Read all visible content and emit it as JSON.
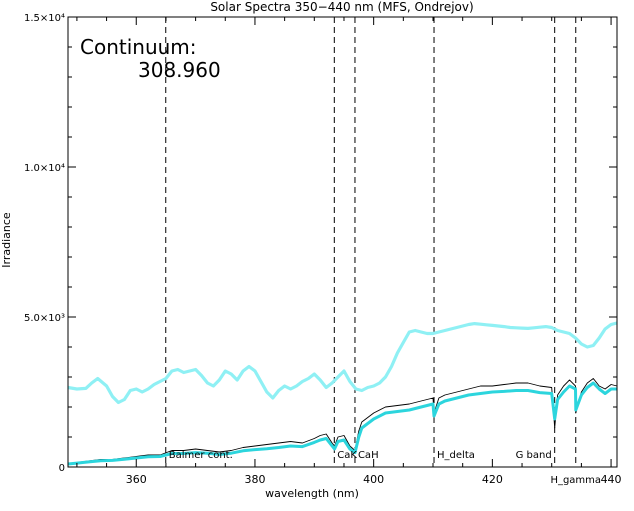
{
  "chart_data": {
    "type": "line",
    "title": "Solar Spectra 350−440 nm (MFS, Ondrejov)",
    "xlabel": "wavelength (nm)",
    "ylabel": "Irradiance",
    "xlim": [
      348.5,
      441
    ],
    "ylim": [
      0,
      15000
    ],
    "x_ticks": [
      {
        "value": 360,
        "label": "360"
      },
      {
        "value": 380,
        "label": "380"
      },
      {
        "value": 400,
        "label": "400"
      },
      {
        "value": 420,
        "label": "420"
      },
      {
        "value": 440,
        "label": "440"
      }
    ],
    "y_ticks": [
      {
        "value": 0,
        "label": "0"
      },
      {
        "value": 5000,
        "label": "5.0×10³"
      },
      {
        "value": 10000,
        "label": "1.0×10⁴"
      },
      {
        "value": 15000,
        "label": "1.5×10⁴"
      }
    ],
    "annotation": {
      "title": "Continuum:",
      "value": "308.960"
    },
    "colors": {
      "continuum": "#8ff0f4",
      "smoothed": "#2cd5dd",
      "raw": "#000000",
      "axes": "#000000"
    },
    "marker_lines": [
      {
        "x": 364.97,
        "label": "Balmer cont."
      },
      {
        "x": 393.37,
        "label": "CaK"
      },
      {
        "x": 396.85,
        "label": "CaH"
      },
      {
        "x": 410.17,
        "label": "H_delta"
      },
      {
        "x": 430.5,
        "label": "G band"
      },
      {
        "x": 434.05,
        "label": "H_gamma"
      }
    ],
    "series": [
      {
        "id": "continuum",
        "style": "thick",
        "x": [
          348.5,
          350,
          351.5,
          352.5,
          353.5,
          355,
          356,
          357,
          358,
          359,
          360,
          361,
          362,
          363,
          364,
          365,
          366,
          367,
          368,
          369,
          370,
          371,
          372,
          373,
          374,
          375,
          376,
          377,
          378,
          379,
          380,
          381,
          382,
          383,
          384,
          385,
          386,
          387,
          388,
          389,
          390,
          391,
          392,
          393,
          394,
          395,
          396,
          397,
          398,
          399,
          400,
          401,
          402,
          403,
          404,
          405,
          406,
          407,
          408,
          409,
          410,
          411,
          412,
          413,
          414,
          415,
          416,
          417,
          418,
          419,
          420,
          421,
          422,
          423,
          424,
          425,
          426,
          427,
          428,
          429,
          430,
          431,
          432,
          433,
          434,
          435,
          436,
          437,
          438,
          439,
          440,
          441
        ],
        "y": [
          2650,
          2600,
          2620,
          2800,
          2950,
          2700,
          2350,
          2150,
          2250,
          2550,
          2600,
          2500,
          2600,
          2750,
          2850,
          2950,
          3200,
          3250,
          3150,
          3200,
          3250,
          3050,
          2800,
          2700,
          2900,
          3200,
          3100,
          2900,
          3200,
          3350,
          3200,
          2850,
          2500,
          2300,
          2550,
          2700,
          2600,
          2700,
          2850,
          2950,
          3100,
          2900,
          2650,
          2800,
          3000,
          3200,
          2850,
          2600,
          2550,
          2650,
          2700,
          2800,
          3000,
          3350,
          3800,
          4150,
          4500,
          4550,
          4500,
          4450,
          4450,
          4500,
          4550,
          4600,
          4650,
          4700,
          4750,
          4780,
          4760,
          4740,
          4720,
          4700,
          4680,
          4650,
          4640,
          4630,
          4620,
          4640,
          4660,
          4680,
          4650,
          4550,
          4500,
          4450,
          4300,
          4100,
          4000,
          4050,
          4300,
          4600,
          4750,
          4800
        ]
      },
      {
        "id": "raw",
        "style": "thin",
        "x": [
          348.5,
          350,
          352,
          354,
          356,
          358,
          360,
          362,
          364,
          366,
          368,
          370,
          372,
          374,
          376,
          378,
          380,
          382,
          384,
          386,
          388,
          390,
          391,
          392,
          393,
          393.4,
          394,
          395,
          396,
          396.85,
          397.5,
          398,
          400,
          402,
          404,
          406,
          408,
          410,
          410.17,
          411,
          412,
          414,
          416,
          418,
          420,
          422,
          424,
          426,
          428,
          430,
          430.5,
          431,
          432,
          433,
          434,
          434.05,
          435,
          436,
          437,
          438,
          439,
          440,
          441
        ],
        "y": [
          100,
          150,
          200,
          250,
          250,
          300,
          350,
          400,
          400,
          550,
          550,
          600,
          550,
          500,
          550,
          650,
          700,
          750,
          800,
          850,
          800,
          950,
          1050,
          1100,
          800,
          700,
          1000,
          1050,
          700,
          550,
          1200,
          1500,
          1800,
          2000,
          2050,
          2100,
          2200,
          2300,
          1800,
          2300,
          2400,
          2500,
          2600,
          2700,
          2700,
          2750,
          2800,
          2800,
          2700,
          2650,
          1300,
          2400,
          2700,
          2900,
          2700,
          1800,
          2500,
          2800,
          2950,
          2700,
          2600,
          2750,
          2700
        ]
      },
      {
        "id": "smoothed",
        "style": "thick",
        "x": [
          348.5,
          350,
          352,
          354,
          356,
          358,
          360,
          362,
          364,
          366,
          368,
          370,
          372,
          374,
          376,
          378,
          380,
          382,
          384,
          386,
          388,
          390,
          391,
          392,
          393,
          393.4,
          394,
          395,
          396,
          396.85,
          397.5,
          398,
          400,
          402,
          404,
          406,
          408,
          410,
          410.17,
          411,
          412,
          414,
          416,
          418,
          420,
          422,
          424,
          426,
          428,
          430,
          430.5,
          431,
          432,
          433,
          434,
          434.05,
          435,
          436,
          437,
          438,
          439,
          440,
          441
        ],
        "y": [
          100,
          130,
          170,
          210,
          220,
          260,
          300,
          340,
          350,
          450,
          450,
          480,
          460,
          420,
          460,
          540,
          580,
          610,
          650,
          700,
          680,
          820,
          900,
          950,
          700,
          600,
          850,
          900,
          600,
          480,
          1000,
          1300,
          1600,
          1800,
          1850,
          1900,
          2000,
          2100,
          1700,
          2100,
          2200,
          2300,
          2400,
          2450,
          2500,
          2520,
          2550,
          2550,
          2480,
          2450,
          1600,
          2250,
          2500,
          2700,
          2600,
          1900,
          2400,
          2650,
          2800,
          2600,
          2450,
          2600,
          2600
        ]
      }
    ]
  }
}
